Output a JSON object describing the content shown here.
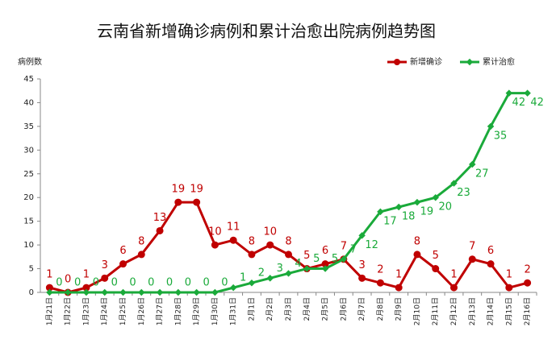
{
  "chart_data": {
    "type": "line",
    "title": "云南省新增确诊病例和累计治愈出院病例趋势图",
    "y_label": "病例数",
    "categories": [
      "1月21日",
      "1月22日",
      "1月23日",
      "1月24日",
      "1月25日",
      "1月26日",
      "1月27日",
      "1月28日",
      "1月29日",
      "1月30日",
      "1月31日",
      "2月1日",
      "2月2日",
      "2月3日",
      "2月4日",
      "2月5日",
      "2月6日",
      "2月7日",
      "2月8日",
      "2月9日",
      "2月10日",
      "2月11日",
      "2月12日",
      "2月13日",
      "2月14日",
      "2月15日",
      "2月16日"
    ],
    "series": [
      {
        "name": "新增确诊",
        "color": "#c00000",
        "values": [
          1,
          0,
          1,
          3,
          6,
          8,
          13,
          19,
          19,
          10,
          11,
          8,
          10,
          8,
          5,
          6,
          7,
          3,
          2,
          1,
          8,
          5,
          1,
          7,
          6,
          1,
          2
        ]
      },
      {
        "name": "累计治愈",
        "color": "#1aaa3a",
        "values": [
          0,
          0,
          0,
          0,
          0,
          0,
          0,
          0,
          0,
          0,
          1,
          2,
          3,
          4,
          5,
          5,
          7,
          12,
          17,
          18,
          19,
          20,
          23,
          27,
          35,
          42,
          42
        ]
      }
    ],
    "ylim": [
      0,
      45
    ],
    "yticks": [
      0,
      5,
      10,
      15,
      20,
      25,
      30,
      35,
      40,
      45
    ],
    "legend": "top-right"
  }
}
